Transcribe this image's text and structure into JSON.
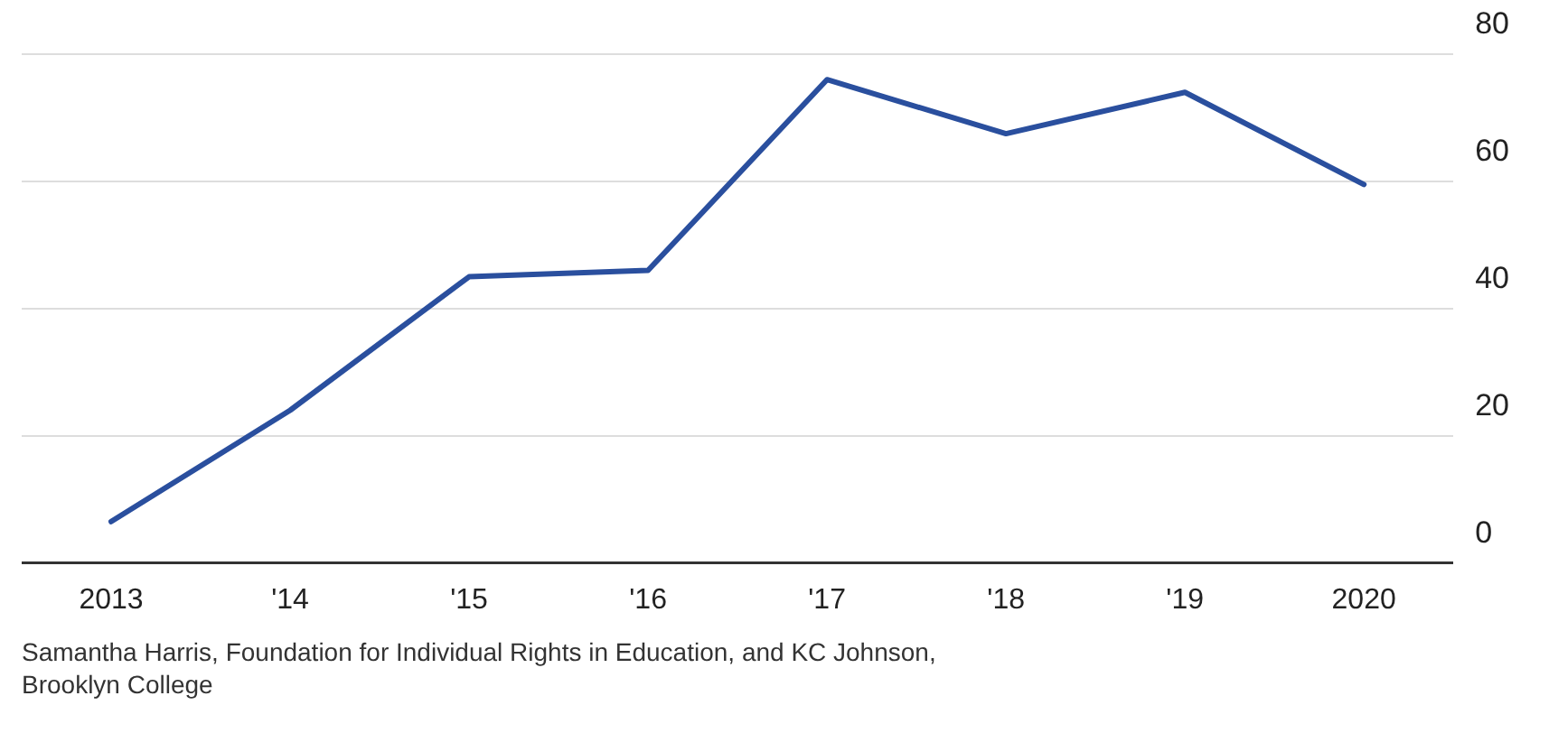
{
  "chart_data": {
    "type": "line",
    "categories": [
      "2013",
      "'14",
      "'15",
      "'16",
      "'17",
      "'18",
      "'19",
      "2020"
    ],
    "series": [
      {
        "color": "#2a4f9e",
        "values": [
          6.5,
          24,
          45,
          46,
          76,
          67.5,
          74,
          59.5
        ]
      }
    ],
    "ylim": [
      0,
      80
    ],
    "yticks": [
      0,
      20,
      40,
      60,
      80
    ],
    "grid": "y",
    "legend": false,
    "marker": "none",
    "line_style": "solid",
    "annotations": [
      "Samantha Harris, Foundation for Individual Rights in Education, and KC Johnson, Brooklyn College"
    ]
  }
}
